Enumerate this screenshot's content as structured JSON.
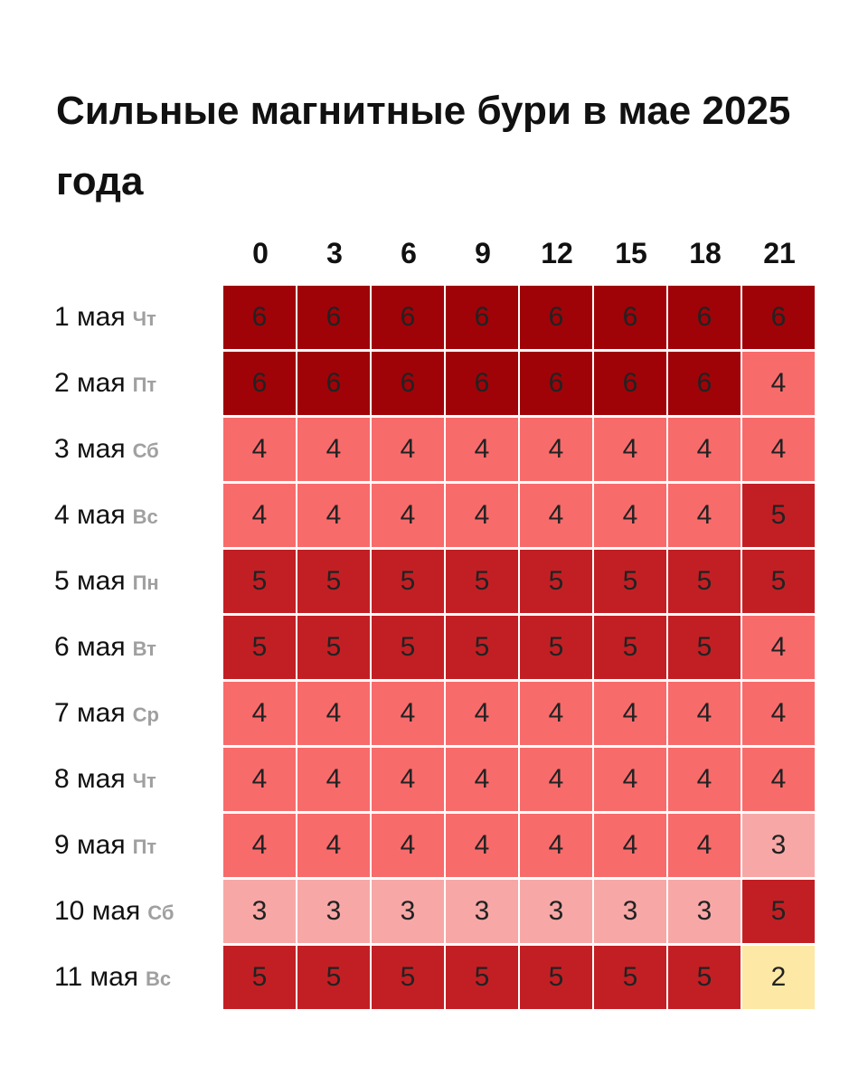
{
  "title": "Сильные магнитные бури в мае 2025 года",
  "colors": {
    "2": "#fde9a5",
    "3": "#f7a8a6",
    "4": "#f86b6b",
    "5": "#c21f24",
    "6": "#9f0308"
  },
  "chart_data": {
    "type": "heatmap",
    "title": "Сильные магнитные бури в мае 2025 года",
    "x": [
      "0",
      "3",
      "6",
      "9",
      "12",
      "15",
      "18",
      "21"
    ],
    "rows": [
      {
        "date": "1 мая",
        "dow": "Чт",
        "values": [
          6,
          6,
          6,
          6,
          6,
          6,
          6,
          6
        ]
      },
      {
        "date": "2 мая",
        "dow": "Пт",
        "values": [
          6,
          6,
          6,
          6,
          6,
          6,
          6,
          4
        ]
      },
      {
        "date": "3 мая",
        "dow": "Сб",
        "values": [
          4,
          4,
          4,
          4,
          4,
          4,
          4,
          4
        ]
      },
      {
        "date": "4 мая",
        "dow": "Вс",
        "values": [
          4,
          4,
          4,
          4,
          4,
          4,
          4,
          5
        ]
      },
      {
        "date": "5 мая",
        "dow": "Пн",
        "values": [
          5,
          5,
          5,
          5,
          5,
          5,
          5,
          5
        ]
      },
      {
        "date": "6 мая",
        "dow": "Вт",
        "values": [
          5,
          5,
          5,
          5,
          5,
          5,
          5,
          4
        ]
      },
      {
        "date": "7 мая",
        "dow": "Ср",
        "values": [
          4,
          4,
          4,
          4,
          4,
          4,
          4,
          4
        ]
      },
      {
        "date": "8 мая",
        "dow": "Чт",
        "values": [
          4,
          4,
          4,
          4,
          4,
          4,
          4,
          4
        ]
      },
      {
        "date": "9 мая",
        "dow": "Пт",
        "values": [
          4,
          4,
          4,
          4,
          4,
          4,
          4,
          3
        ]
      },
      {
        "date": "10 мая",
        "dow": "Сб",
        "values": [
          3,
          3,
          3,
          3,
          3,
          3,
          3,
          5
        ]
      },
      {
        "date": "11 мая",
        "dow": "Вс",
        "values": [
          5,
          5,
          5,
          5,
          5,
          5,
          5,
          2
        ]
      }
    ]
  }
}
